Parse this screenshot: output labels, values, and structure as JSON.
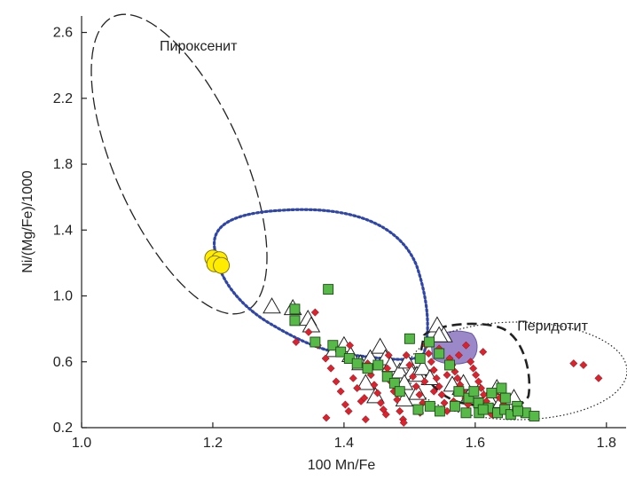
{
  "chart_data": {
    "type": "scatter",
    "title": "",
    "xlabel": "100 Mn/Fe",
    "ylabel": "Ni/(Mg/Fe)/1000",
    "xlim": [
      1.0,
      1.83
    ],
    "ylim": [
      0.2,
      2.7
    ],
    "x_ticks": [
      1.0,
      1.2,
      1.4,
      1.6,
      1.8
    ],
    "y_ticks": [
      0.2,
      0.6,
      1.0,
      1.4,
      1.8,
      2.2,
      2.6
    ],
    "x_tick_labels": [
      "1.0",
      "1.2",
      "1.4",
      "1.6",
      "1.8"
    ],
    "y_tick_labels": [
      "0.2",
      "0.6",
      "1.0",
      "1.4",
      "1.8",
      "2.2",
      "2.6"
    ],
    "grid": false,
    "legend": "none",
    "colors": {
      "red_diamond": "#d9232e",
      "green_square": "#56b948",
      "yellow_circle": "#ffec00",
      "purple_field": "#9a88c9",
      "blue_dotted": "#2f46a8",
      "dashed_outline": "#222222"
    },
    "fields": [
      {
        "label": "Пироксенит",
        "label_x": 1.119,
        "label_y": 2.49
      },
      {
        "label": "Перидотит",
        "label_x": 1.664,
        "label_y": 0.79
      }
    ],
    "series": [
      {
        "marker": "yellow-circle",
        "points": [
          [
            1.2,
            1.23
          ],
          [
            1.21,
            1.22
          ],
          [
            1.203,
            1.195
          ],
          [
            1.213,
            1.185
          ]
        ]
      },
      {
        "marker": "white-triangle",
        "points": [
          [
            1.29,
            0.935
          ],
          [
            1.322,
            0.925
          ],
          [
            1.345,
            0.86
          ],
          [
            1.35,
            0.82
          ],
          [
            1.385,
            0.67
          ],
          [
            1.4,
            0.7
          ],
          [
            1.41,
            0.64
          ],
          [
            1.425,
            0.59
          ],
          [
            1.44,
            0.62
          ],
          [
            1.455,
            0.69
          ],
          [
            1.463,
            0.62
          ],
          [
            1.471,
            0.58
          ],
          [
            1.485,
            0.54
          ],
          [
            1.496,
            0.6
          ],
          [
            1.503,
            0.53
          ],
          [
            1.511,
            0.52
          ],
          [
            1.52,
            0.56
          ],
          [
            1.531,
            0.5
          ],
          [
            1.542,
            0.82
          ],
          [
            1.552,
            0.76
          ],
          [
            1.565,
            0.46
          ],
          [
            1.578,
            0.44
          ],
          [
            1.592,
            0.4
          ],
          [
            1.606,
            0.42
          ],
          [
            1.62,
            0.38
          ],
          [
            1.64,
            0.36
          ],
          [
            1.659,
            0.38
          ],
          [
            1.492,
            0.37
          ],
          [
            1.512,
            0.41
          ],
          [
            1.448,
            0.39
          ],
          [
            1.433,
            0.47
          ],
          [
            1.492,
            0.47
          ],
          [
            1.582,
            0.47
          ],
          [
            1.633,
            0.44
          ],
          [
            1.545,
            0.76
          ]
        ]
      },
      {
        "marker": "red-diamond",
        "points": [
          [
            1.346,
            0.78
          ],
          [
            1.36,
            0.7
          ],
          [
            1.372,
            0.62
          ],
          [
            1.38,
            0.56
          ],
          [
            1.388,
            0.48
          ],
          [
            1.395,
            0.42
          ],
          [
            1.402,
            0.34
          ],
          [
            1.407,
            0.3
          ],
          [
            1.414,
            0.5
          ],
          [
            1.42,
            0.44
          ],
          [
            1.426,
            0.36
          ],
          [
            1.431,
            0.38
          ],
          [
            1.436,
            0.59
          ],
          [
            1.441,
            0.52
          ],
          [
            1.446,
            0.46
          ],
          [
            1.451,
            0.41
          ],
          [
            1.456,
            0.35
          ],
          [
            1.46,
            0.31
          ],
          [
            1.466,
            0.56
          ],
          [
            1.471,
            0.48
          ],
          [
            1.476,
            0.42
          ],
          [
            1.481,
            0.37
          ],
          [
            1.485,
            0.3
          ],
          [
            1.49,
            0.25
          ],
          [
            1.495,
            0.64
          ],
          [
            1.5,
            0.58
          ],
          [
            1.505,
            0.51
          ],
          [
            1.51,
            0.45
          ],
          [
            1.515,
            0.4
          ],
          [
            1.52,
            0.35
          ],
          [
            1.525,
            0.7
          ],
          [
            1.529,
            0.65
          ],
          [
            1.533,
            0.6
          ],
          [
            1.537,
            0.55
          ],
          [
            1.541,
            0.5
          ],
          [
            1.545,
            0.45
          ],
          [
            1.549,
            0.4
          ],
          [
            1.553,
            0.35
          ],
          [
            1.557,
            0.3
          ],
          [
            1.561,
            0.62
          ],
          [
            1.565,
            0.58
          ],
          [
            1.569,
            0.54
          ],
          [
            1.573,
            0.5
          ],
          [
            1.577,
            0.46
          ],
          [
            1.581,
            0.42
          ],
          [
            1.585,
            0.38
          ],
          [
            1.589,
            0.34
          ],
          [
            1.593,
            0.6
          ],
          [
            1.597,
            0.56
          ],
          [
            1.601,
            0.52
          ],
          [
            1.605,
            0.48
          ],
          [
            1.609,
            0.44
          ],
          [
            1.613,
            0.4
          ],
          [
            1.617,
            0.36
          ],
          [
            1.621,
            0.32
          ],
          [
            1.625,
            0.28
          ],
          [
            1.631,
            0.41
          ],
          [
            1.637,
            0.38
          ],
          [
            1.643,
            0.34
          ],
          [
            1.651,
            0.3
          ],
          [
            1.75,
            0.59
          ],
          [
            1.765,
            0.58
          ],
          [
            1.788,
            0.5
          ],
          [
            1.373,
            0.26
          ],
          [
            1.433,
            0.25
          ],
          [
            1.464,
            0.28
          ],
          [
            1.491,
            0.23
          ],
          [
            1.537,
            0.42
          ],
          [
            1.545,
            0.68
          ],
          [
            1.575,
            0.64
          ],
          [
            1.523,
            0.48
          ],
          [
            1.557,
            0.52
          ],
          [
            1.567,
            0.36
          ],
          [
            1.516,
            0.29
          ],
          [
            1.409,
            0.7
          ],
          [
            1.327,
            0.72
          ],
          [
            1.356,
            0.9
          ],
          [
            1.468,
            0.64
          ],
          [
            1.586,
            0.7
          ],
          [
            1.612,
            0.66
          ]
        ]
      },
      {
        "marker": "green-square",
        "points": [
          [
            1.325,
            0.92
          ],
          [
            1.325,
            0.85
          ],
          [
            1.376,
            1.04
          ],
          [
            1.356,
            0.72
          ],
          [
            1.383,
            0.7
          ],
          [
            1.395,
            0.66
          ],
          [
            1.408,
            0.62
          ],
          [
            1.42,
            0.59
          ],
          [
            1.436,
            0.56
          ],
          [
            1.452,
            0.58
          ],
          [
            1.466,
            0.51
          ],
          [
            1.477,
            0.47
          ],
          [
            1.485,
            0.42
          ],
          [
            1.5,
            0.74
          ],
          [
            1.516,
            0.62
          ],
          [
            1.53,
            0.72
          ],
          [
            1.545,
            0.65
          ],
          [
            1.561,
            0.58
          ],
          [
            1.575,
            0.42
          ],
          [
            1.59,
            0.38
          ],
          [
            1.605,
            0.35
          ],
          [
            1.62,
            0.32
          ],
          [
            1.634,
            0.29
          ],
          [
            1.645,
            0.31
          ],
          [
            1.654,
            0.28
          ],
          [
            1.664,
            0.33
          ],
          [
            1.677,
            0.29
          ],
          [
            1.69,
            0.27
          ],
          [
            1.625,
            0.41
          ],
          [
            1.64,
            0.44
          ],
          [
            1.569,
            0.33
          ],
          [
            1.586,
            0.29
          ],
          [
            1.606,
            0.29
          ],
          [
            1.513,
            0.31
          ],
          [
            1.531,
            0.33
          ],
          [
            1.546,
            0.3
          ],
          [
            1.598,
            0.42
          ],
          [
            1.612,
            0.31
          ],
          [
            1.646,
            0.38
          ],
          [
            1.665,
            0.3
          ]
        ]
      }
    ],
    "outlines": [
      {
        "style": "long-dash",
        "desc": "pyroxenite field",
        "cx": 1.175,
        "cy": 1.78,
        "rx_data": 0.07,
        "ry_data": 0.95,
        "angle": -28
      },
      {
        "style": "blue-dotted",
        "desc": "transitional field"
      },
      {
        "style": "heavy-dash",
        "desc": "inner peridotite"
      },
      {
        "style": "fine-dotted",
        "desc": "peridotite field"
      }
    ]
  }
}
